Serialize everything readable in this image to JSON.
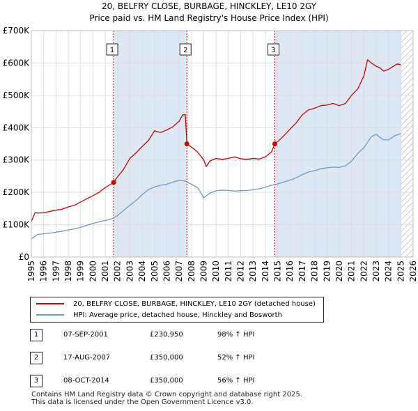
{
  "title_line1": "20, BELFRY CLOSE, BURBAGE, HINCKLEY, LE10 2GY",
  "title_line2": "Price paid vs. HM Land Registry's House Price Index (HPI)",
  "colors": {
    "price_paid": "#cc0000",
    "hpi": "#6699cc",
    "shade": "#dde8f4",
    "grid": "#dddddd"
  },
  "chart_data": {
    "type": "line",
    "title": "20, BELFRY CLOSE, BURBAGE, HINCKLEY, LE10 2GY — Price paid vs. HM Land Registry's House Price Index (HPI)",
    "xlabel": "",
    "ylabel": "",
    "xlim": [
      1995,
      2026
    ],
    "ylim": [
      0,
      700000
    ],
    "y_ticks": [
      0,
      100000,
      200000,
      300000,
      400000,
      500000,
      600000,
      700000
    ],
    "y_tick_labels": [
      "£0",
      "£100K",
      "£200K",
      "£300K",
      "£400K",
      "£500K",
      "£600K",
      "£700K"
    ],
    "x_ticks": [
      1995,
      1996,
      1997,
      1998,
      1999,
      2000,
      2001,
      2002,
      2003,
      2004,
      2005,
      2006,
      2007,
      2008,
      2009,
      2010,
      2011,
      2012,
      2013,
      2014,
      2015,
      2016,
      2017,
      2018,
      2019,
      2020,
      2021,
      2022,
      2023,
      2024,
      2025,
      2026
    ],
    "x_tick_labels": [
      "1995",
      "1996",
      "1997",
      "1998",
      "1999",
      "2000",
      "2001",
      "2002",
      "2003",
      "2004",
      "2005",
      "2006",
      "2007",
      "2008",
      "2009",
      "2010",
      "2011",
      "2012",
      "2013",
      "2014",
      "2015",
      "2016",
      "2017",
      "2018",
      "2019",
      "2020",
      "2021",
      "2022",
      "2023",
      "2024",
      "2025",
      "2026"
    ],
    "shaded_regions": [
      [
        2001.68,
        2007.63
      ],
      [
        2014.77,
        2025.05
      ]
    ],
    "hatched_after": 2025.05,
    "series": [
      {
        "name": "20, BELFRY CLOSE, BURBAGE, HINCKLEY, LE10 2GY (detached house)",
        "color": "#cc0000",
        "x": [
          1995.0,
          1995.3,
          1995.6,
          1996.0,
          1996.5,
          1997.0,
          1997.5,
          1998.0,
          1998.5,
          1999.0,
          1999.5,
          2000.0,
          2000.5,
          2001.0,
          2001.4,
          2001.68,
          2002.0,
          2002.5,
          2003.0,
          2003.5,
          2004.0,
          2004.5,
          2005.0,
          2005.5,
          2006.0,
          2006.5,
          2007.0,
          2007.3,
          2007.5,
          2007.63,
          2008.0,
          2008.5,
          2009.0,
          2009.2,
          2009.5,
          2010.0,
          2010.5,
          2011.0,
          2011.5,
          2012.0,
          2012.5,
          2013.0,
          2013.5,
          2014.0,
          2014.5,
          2014.77,
          2015.0,
          2015.5,
          2016.0,
          2016.5,
          2017.0,
          2017.5,
          2018.0,
          2018.5,
          2019.0,
          2019.5,
          2020.0,
          2020.5,
          2021.0,
          2021.5,
          2022.0,
          2022.3,
          2022.6,
          2023.0,
          2023.3,
          2023.6,
          2024.0,
          2024.4,
          2024.7,
          2025.0
        ],
        "values": [
          110000,
          137000,
          136000,
          137000,
          141000,
          145000,
          148000,
          155000,
          160000,
          170000,
          180000,
          190000,
          200000,
          215000,
          224000,
          230950,
          248000,
          272000,
          305000,
          322000,
          342000,
          360000,
          390000,
          385000,
          393000,
          403000,
          420000,
          440000,
          440000,
          350000,
          340000,
          325000,
          300000,
          280000,
          297000,
          305000,
          302000,
          305000,
          310000,
          304000,
          302000,
          305000,
          303000,
          310000,
          325000,
          350000,
          357000,
          375000,
          395000,
          415000,
          440000,
          455000,
          460000,
          468000,
          470000,
          475000,
          468000,
          475000,
          500000,
          520000,
          560000,
          610000,
          600000,
          590000,
          585000,
          575000,
          580000,
          590000,
          597000,
          595000
        ]
      },
      {
        "name": "HPI: Average price, detached house, Hinckley and Bosworth",
        "color": "#6699cc",
        "x": [
          1995.0,
          1995.5,
          1996.0,
          1996.5,
          1997.0,
          1997.5,
          1998.0,
          1998.5,
          1999.0,
          1999.5,
          2000.0,
          2000.5,
          2001.0,
          2001.5,
          2002.0,
          2002.5,
          2003.0,
          2003.5,
          2004.0,
          2004.5,
          2005.0,
          2005.5,
          2006.0,
          2006.5,
          2007.0,
          2007.5,
          2008.0,
          2008.5,
          2009.0,
          2009.5,
          2010.0,
          2010.5,
          2011.0,
          2011.5,
          2012.0,
          2012.5,
          2013.0,
          2013.5,
          2014.0,
          2014.5,
          2015.0,
          2015.5,
          2016.0,
          2016.5,
          2017.0,
          2017.5,
          2018.0,
          2018.5,
          2019.0,
          2019.5,
          2020.0,
          2020.5,
          2021.0,
          2021.5,
          2022.0,
          2022.3,
          2022.6,
          2023.0,
          2023.3,
          2023.6,
          2024.0,
          2024.5,
          2025.0
        ],
        "values": [
          56000,
          70000,
          72000,
          74000,
          77000,
          80000,
          84000,
          87000,
          92000,
          98000,
          104000,
          109000,
          113000,
          118000,
          128000,
          145000,
          160000,
          175000,
          193000,
          208000,
          217000,
          222000,
          225000,
          232000,
          237000,
          235000,
          225000,
          215000,
          183000,
          198000,
          205000,
          207000,
          206000,
          204000,
          205000,
          206000,
          208000,
          211000,
          216000,
          222000,
          226000,
          232000,
          238000,
          245000,
          255000,
          263000,
          267000,
          273000,
          276000,
          278000,
          277000,
          282000,
          297000,
          320000,
          338000,
          355000,
          372000,
          380000,
          370000,
          362000,
          362000,
          375000,
          382000
        ]
      }
    ],
    "sale_markers": [
      {
        "label": "1",
        "x": 2001.68,
        "y": 230950
      },
      {
        "label": "2",
        "x": 2007.63,
        "y": 350000
      },
      {
        "label": "3",
        "x": 2014.77,
        "y": 350000
      }
    ]
  },
  "legend": {
    "price_paid_label": "20, BELFRY CLOSE, BURBAGE, HINCKLEY, LE10 2GY (detached house)",
    "hpi_label": "HPI: Average price, detached house, Hinckley and Bosworth"
  },
  "sales": [
    {
      "num": "1",
      "date": "07-SEP-2001",
      "price": "£230,950",
      "hpi": "98% ↑ HPI"
    },
    {
      "num": "2",
      "date": "17-AUG-2007",
      "price": "£350,000",
      "hpi": "52% ↑ HPI"
    },
    {
      "num": "3",
      "date": "08-OCT-2014",
      "price": "£350,000",
      "hpi": "56% ↑ HPI"
    }
  ],
  "footer_line1": "Contains HM Land Registry data © Crown copyright and database right 2025.",
  "footer_line2": "This data is licensed under the Open Government Licence v3.0."
}
